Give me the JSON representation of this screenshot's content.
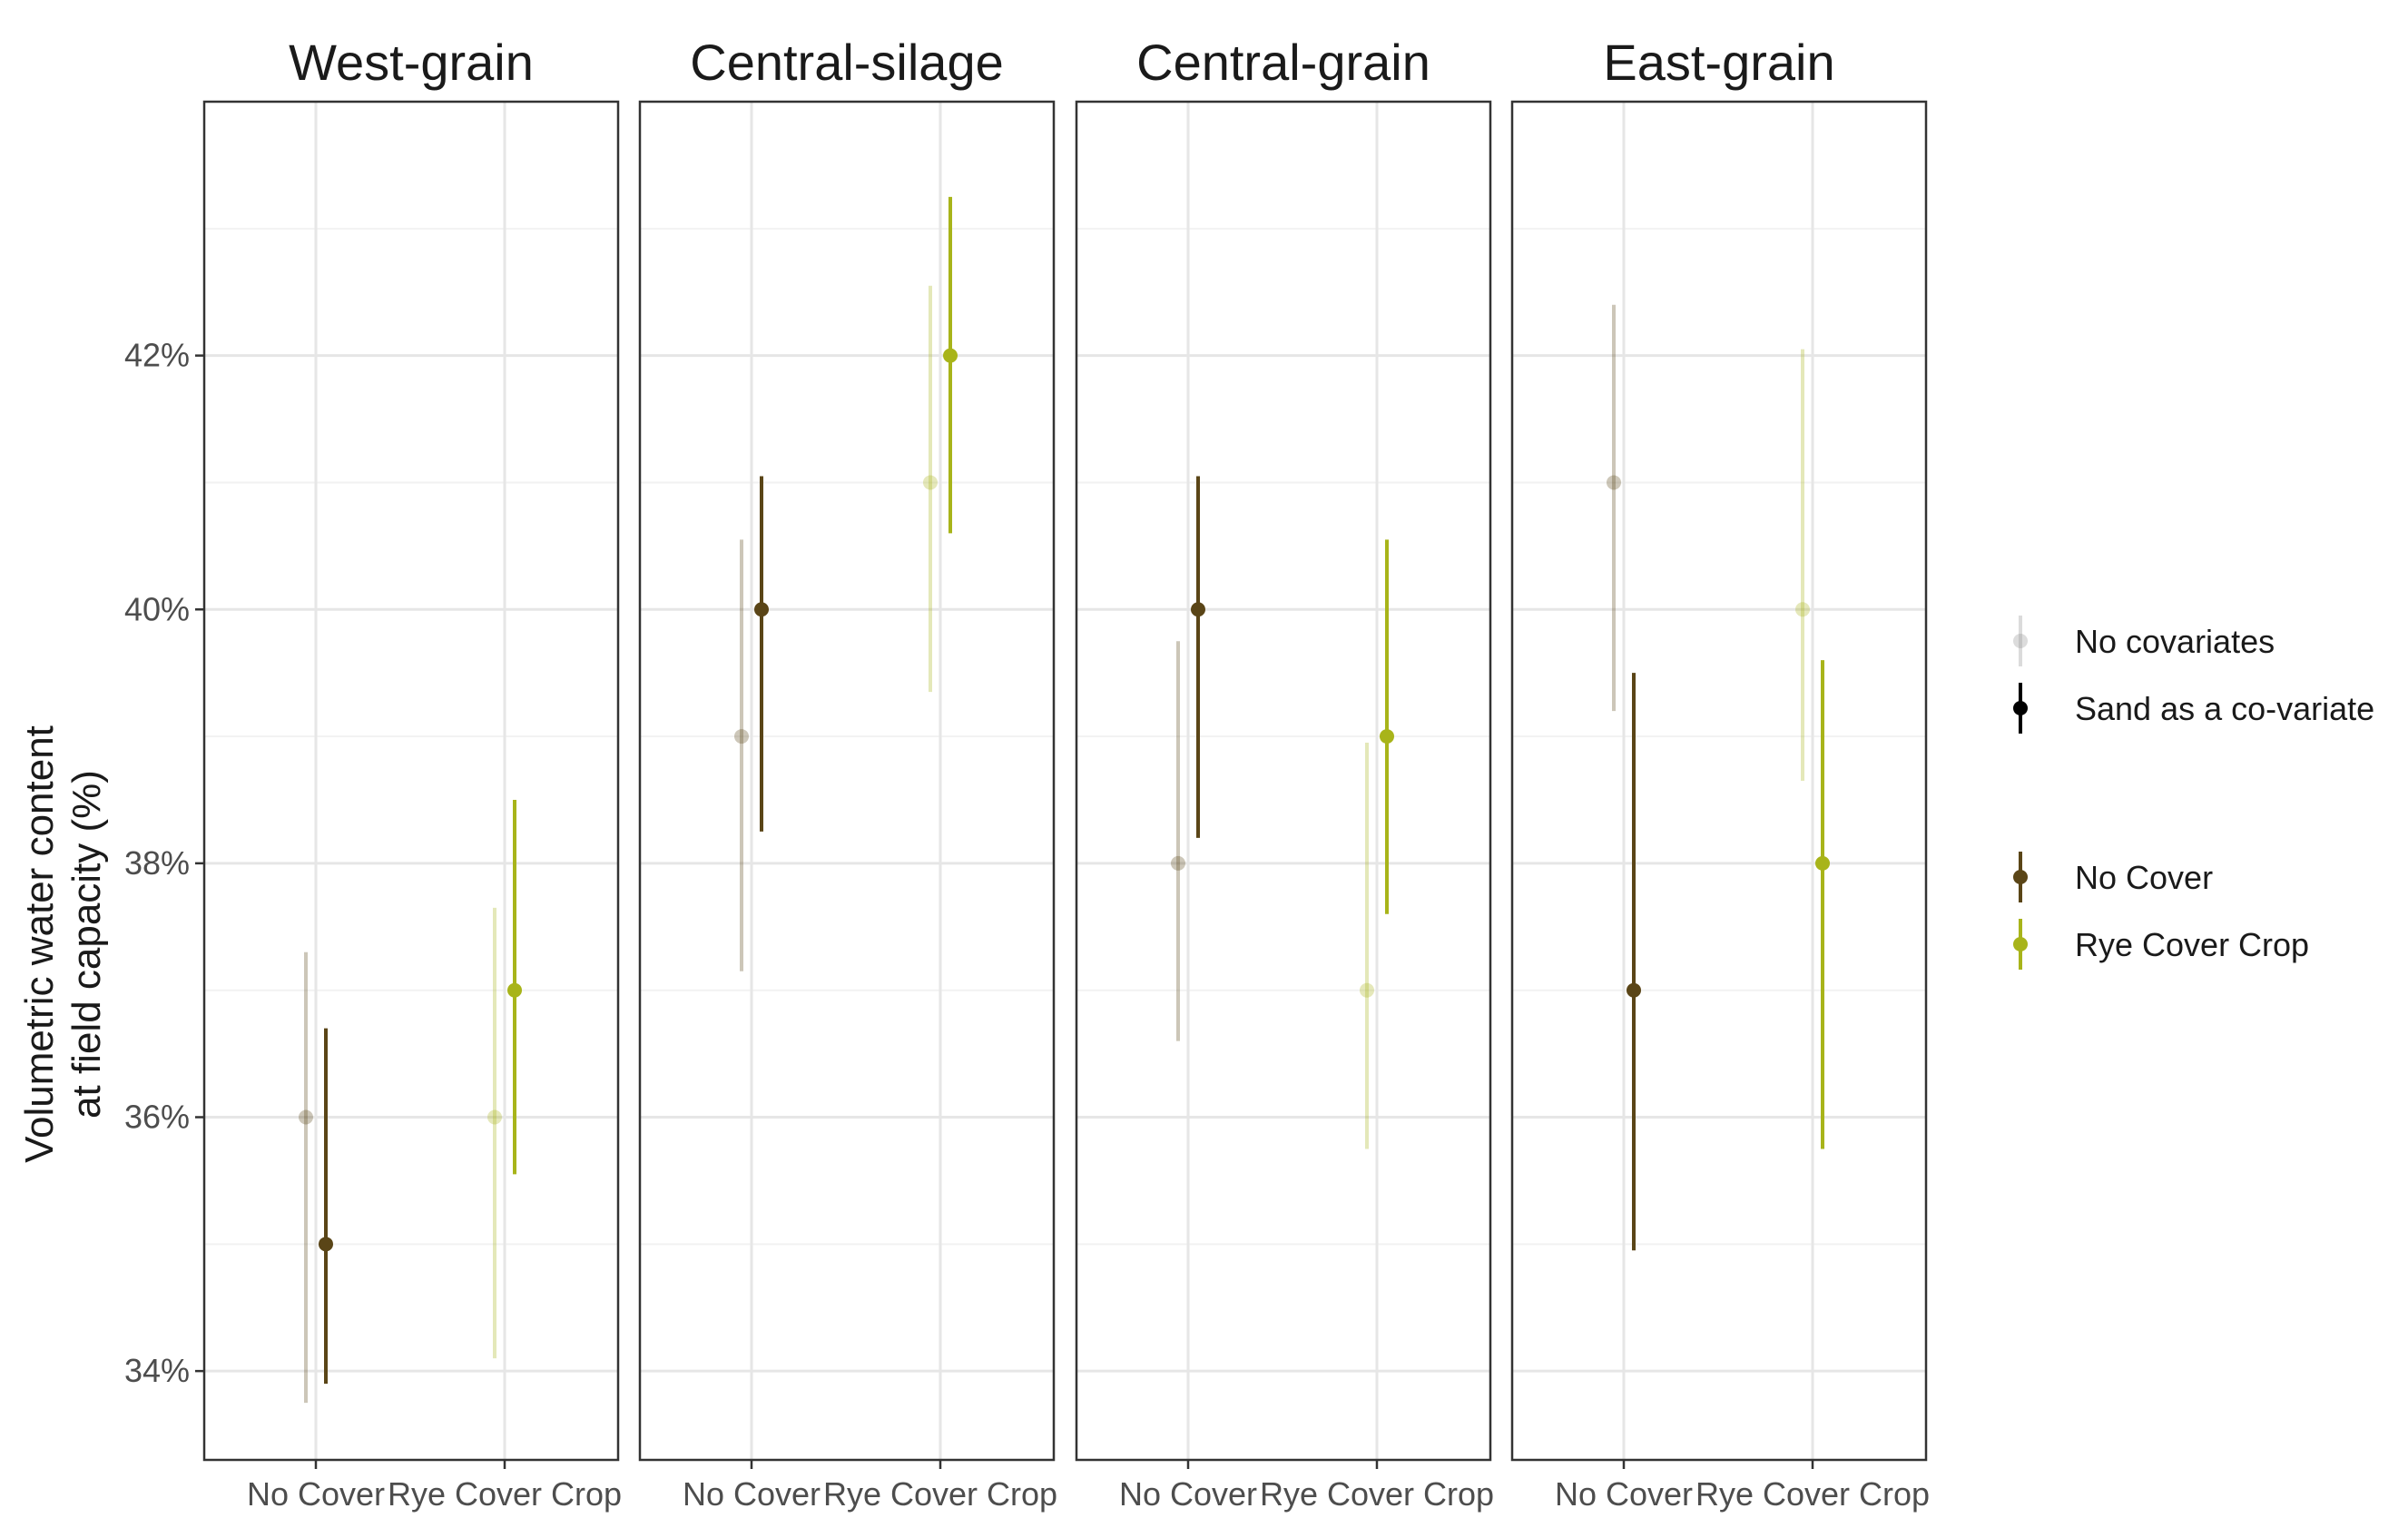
{
  "chart_data": {
    "type": "scatter",
    "subtype": "point-range (dodged), faceted",
    "ylabel_line1": "Volumetric water content",
    "ylabel_line2": "at field capacity (%)",
    "xlabel": "",
    "ylim": [
      33.3,
      44.0
    ],
    "y_ticks": [
      34,
      36,
      38,
      40,
      42
    ],
    "y_tick_labels": [
      "34%",
      "36%",
      "38%",
      "40%",
      "42%"
    ],
    "categories": [
      "No Cover",
      "Rye Cover Crop"
    ],
    "grid": true,
    "legend_position": "right",
    "colors": {
      "no_cover": "#5a4517",
      "rye_cover_crop": "#a8b41a",
      "grid_major": "#e6e6e6",
      "grid_minor": "#f2f2f2",
      "panel_border": "#333333"
    },
    "legend": {
      "model_group": [
        {
          "label": "No covariates",
          "color": "#9a9a9a",
          "faded": true
        },
        {
          "label": "Sand as a co-variate",
          "color": "#000000",
          "faded": false
        }
      ],
      "treatment_group": [
        {
          "label": "No Cover",
          "color": "#5a4517"
        },
        {
          "label": "Rye Cover Crop",
          "color": "#a8b41a"
        }
      ]
    },
    "panels": [
      {
        "title": "West-grain",
        "points": [
          {
            "treatment": "No Cover",
            "model": "No covariates",
            "y": 36.0,
            "low": 33.75,
            "high": 37.3
          },
          {
            "treatment": "No Cover",
            "model": "Sand as a co-variate",
            "y": 35.0,
            "low": 33.9,
            "high": 36.7
          },
          {
            "treatment": "Rye Cover Crop",
            "model": "No covariates",
            "y": 36.0,
            "low": 34.1,
            "high": 37.65
          },
          {
            "treatment": "Rye Cover Crop",
            "model": "Sand as a co-variate",
            "y": 37.0,
            "low": 35.55,
            "high": 38.5
          }
        ]
      },
      {
        "title": "Central-silage",
        "points": [
          {
            "treatment": "No Cover",
            "model": "No covariates",
            "y": 39.0,
            "low": 37.15,
            "high": 40.55
          },
          {
            "treatment": "No Cover",
            "model": "Sand as a co-variate",
            "y": 40.0,
            "low": 38.25,
            "high": 41.05
          },
          {
            "treatment": "Rye Cover Crop",
            "model": "No covariates",
            "y": 41.0,
            "low": 39.35,
            "high": 42.55
          },
          {
            "treatment": "Rye Cover Crop",
            "model": "Sand as a co-variate",
            "y": 42.0,
            "low": 40.6,
            "high": 43.25
          }
        ]
      },
      {
        "title": "Central-grain",
        "points": [
          {
            "treatment": "No Cover",
            "model": "No covariates",
            "y": 38.0,
            "low": 36.6,
            "high": 39.75
          },
          {
            "treatment": "No Cover",
            "model": "Sand as a co-variate",
            "y": 40.0,
            "low": 38.2,
            "high": 41.05
          },
          {
            "treatment": "Rye Cover Crop",
            "model": "No covariates",
            "y": 37.0,
            "low": 35.75,
            "high": 38.95
          },
          {
            "treatment": "Rye Cover Crop",
            "model": "Sand as a co-variate",
            "y": 39.0,
            "low": 37.6,
            "high": 40.55
          }
        ]
      },
      {
        "title": "East-grain",
        "points": [
          {
            "treatment": "No Cover",
            "model": "No covariates",
            "y": 41.0,
            "low": 39.2,
            "high": 42.4
          },
          {
            "treatment": "No Cover",
            "model": "Sand as a co-variate",
            "y": 37.0,
            "low": 34.95,
            "high": 39.5
          },
          {
            "treatment": "Rye Cover Crop",
            "model": "No covariates",
            "y": 40.0,
            "low": 38.65,
            "high": 42.05
          },
          {
            "treatment": "Rye Cover Crop",
            "model": "Sand as a co-variate",
            "y": 38.0,
            "low": 35.75,
            "high": 39.6
          }
        ]
      }
    ]
  }
}
